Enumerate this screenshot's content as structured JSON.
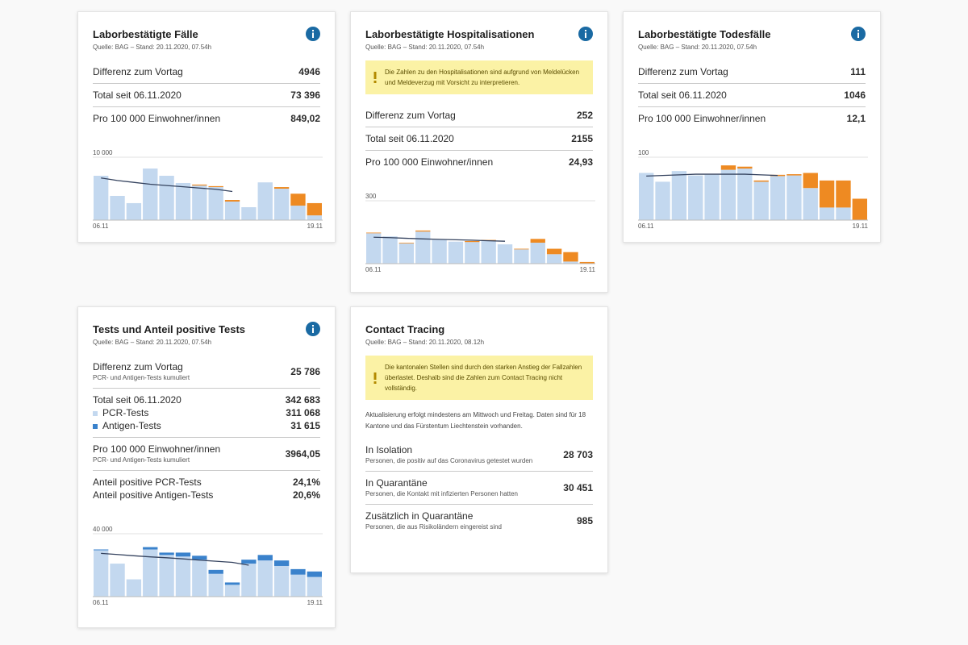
{
  "cards": [
    {
      "title": "Laborbestätigte Fälle",
      "source": "Quelle: BAG – Stand: 20.11.2020, 07.54h",
      "info_icon": true,
      "rows": [
        {
          "lines": [
            {
              "label": "Differenz zum Vortag",
              "value": "4946"
            }
          ]
        },
        {
          "lines": [
            {
              "label": "Total seit 06.11.2020",
              "value": "73 396"
            }
          ]
        },
        {
          "lines": [
            {
              "label": "Pro 100 000 Einwohner/innen",
              "value": "849,02"
            }
          ]
        }
      ],
      "chart": {
        "type": "bar",
        "ylim": [
          0,
          10000
        ],
        "yticks": [
          {
            "value": 10000,
            "label": "10 000"
          }
        ],
        "categories": [
          "06.11",
          null,
          null,
          null,
          null,
          null,
          null,
          null,
          null,
          null,
          null,
          null,
          null,
          "19.11"
        ],
        "series": [
          {
            "color": "#c3d8ef",
            "values": [
              7050,
              3850,
              2700,
              8200,
              7050,
              5900,
              5500,
              5250,
              2950,
              2050,
              6000,
              5000,
              2300,
              750
            ]
          },
          {
            "color": "#ee8a22",
            "values": [
              0,
              0,
              0,
              0,
              0,
              0,
              150,
              150,
              250,
              0,
              0,
              250,
              1900,
              1950
            ]
          },
          {
            "type": "line",
            "color": "#34425e",
            "values": [
              6700,
              6300,
              6000,
              5700,
              5500,
              5300,
              5100,
              4900,
              4550,
              null,
              null,
              null,
              null,
              null
            ]
          }
        ]
      }
    },
    {
      "title": "Laborbestätigte Hospitalisationen",
      "source": "Quelle: BAG – Stand: 20.11.2020, 07.54h",
      "info_icon": true,
      "notice": "Die Zahlen zu den Hospitalisationen sind aufgrund von Meldelücken und Meldeverzug mit Vorsicht zu interpretieren.",
      "rows": [
        {
          "lines": [
            {
              "label": "Differenz zum Vortag",
              "value": "252"
            }
          ]
        },
        {
          "lines": [
            {
              "label": "Total seit 06.11.2020",
              "value": "2155"
            }
          ]
        },
        {
          "lines": [
            {
              "label": "Pro 100 000 Einwohner/innen",
              "value": "24,93"
            }
          ]
        }
      ],
      "chart": {
        "type": "bar",
        "ylim": [
          0,
          300
        ],
        "yticks": [
          300
        ],
        "categories": [
          "06.11",
          null,
          null,
          null,
          null,
          null,
          null,
          null,
          null,
          null,
          null,
          null,
          null,
          "19.11"
        ],
        "series": [
          {
            "color": "#c3d8ef",
            "values": [
              145,
              130,
              97,
              153,
              113,
              105,
              103,
              110,
              92,
              68,
              100,
              45,
              10,
              0
            ]
          },
          {
            "color": "#ee8a22",
            "values": [
              3,
              0,
              3,
              5,
              0,
              0,
              5,
              3,
              0,
              3,
              18,
              26,
              45,
              8
            ]
          },
          {
            "type": "line",
            "color": "#34425e",
            "values": [
              126,
              124,
              121,
              118,
              116,
              114,
              112,
              109,
              107,
              null,
              null,
              null,
              null,
              null
            ]
          }
        ]
      }
    },
    {
      "title": "Laborbestätigte Todesfälle",
      "source": "Quelle: BAG – Stand: 20.11.2020, 07.54h",
      "info_icon": true,
      "rows": [
        {
          "lines": [
            {
              "label": "Differenz zum Vortag",
              "value": "111"
            }
          ]
        },
        {
          "lines": [
            {
              "label": "Total seit 06.11.2020",
              "value": "1046"
            }
          ]
        },
        {
          "lines": [
            {
              "label": "Pro 100 000 Einwohner/innen",
              "value": "12,1"
            }
          ]
        }
      ],
      "chart": {
        "type": "bar",
        "ylim": [
          0,
          100
        ],
        "yticks": [
          100
        ],
        "categories": [
          "06.11",
          null,
          null,
          null,
          null,
          null,
          null,
          null,
          null,
          null,
          null,
          null,
          null,
          "19.11"
        ],
        "series": [
          {
            "color": "#c3d8ef",
            "values": [
              75,
              61,
              78,
              71,
              72,
              80,
              82,
              61,
              70,
              71,
              51,
              20,
              20,
              0
            ]
          },
          {
            "color": "#ee8a22",
            "values": [
              0,
              0,
              0,
              0,
              0,
              7,
              3,
              2,
              2,
              2,
              24,
              43,
              43,
              34
            ]
          },
          {
            "type": "line",
            "color": "#34425e",
            "values": [
              70,
              71,
              72,
              73,
              73,
              73,
              73,
              72,
              71,
              null,
              null,
              null,
              null,
              null
            ]
          }
        ]
      }
    },
    {
      "title": "Tests und Anteil positive Tests",
      "source": "Quelle: BAG – Stand: 20.11.2020, 07.54h",
      "info_icon": true,
      "rows": [
        {
          "lines": [
            {
              "label": "Differenz zum Vortag",
              "sublabel": "PCR- und Antigen-Tests kumuliert",
              "value": "25 786"
            }
          ]
        },
        {
          "lines": [
            {
              "label": "Total seit 06.11.2020",
              "value": "342 683"
            },
            {
              "label": "PCR-Tests",
              "value": "311 068",
              "swatch": "#c3d8ef"
            },
            {
              "label": "Antigen-Tests",
              "value": "31 615",
              "swatch": "#3a82cc"
            }
          ]
        },
        {
          "lines": [
            {
              "label": "Pro 100 000 Einwohner/innen",
              "sublabel": "PCR- und Antigen-Tests kumuliert",
              "value": "3964,05"
            }
          ]
        },
        {
          "lines": [
            {
              "label": "Anteil positive PCR-Tests",
              "value": "24,1%"
            },
            {
              "label": "Anteil positive Antigen-Tests",
              "value": "20,6%"
            }
          ]
        }
      ],
      "chart": {
        "type": "bar",
        "ylim": [
          0,
          40000
        ],
        "yticks": [
          {
            "value": 40000,
            "label": "40 000"
          }
        ],
        "categories": [
          "06.11",
          null,
          null,
          null,
          null,
          null,
          null,
          null,
          null,
          null,
          null,
          null,
          null,
          "19.11"
        ],
        "series": [
          {
            "color": "#c3d8ef",
            "values": [
              29500,
              21000,
              11000,
              30000,
              26500,
              25500,
              23500,
              14500,
              7500,
              21000,
              23000,
              19500,
              14000,
              12500
            ]
          },
          {
            "color": "#3a82cc",
            "values": [
              500,
              0,
              0,
              1500,
              1500,
              2500,
              2500,
              2500,
              1500,
              2500,
              3500,
              3500,
              3500,
              3500
            ]
          },
          {
            "type": "line",
            "color": "#34425e",
            "values": [
              27500,
              26800,
              26000,
              25300,
              24700,
              24000,
              23200,
              22500,
              21800,
              20000,
              null,
              null,
              null,
              null
            ]
          }
        ]
      }
    },
    {
      "title": "Contact Tracing",
      "source": "Quelle: BAG – Stand: 20.11.2020, 08.12h",
      "notice": "Die kantonalen Stellen sind durch den starken Anstieg der Fallzahlen überlastet. Deshalb sind die Zahlen zum Contact Tracing nicht vollständig.",
      "note": "Aktualisierung erfolgt mindestens am Mittwoch und Freitag. Daten sind für 18 Kantone und das Fürstentum Liechtenstein vorhanden.",
      "rows": [
        {
          "lines": [
            {
              "label": "In Isolation",
              "sublabel": "Personen, die positiv auf das Coronavirus getestet wurden",
              "value": "28 703"
            }
          ]
        },
        {
          "lines": [
            {
              "label": "In Quarantäne",
              "sublabel": "Personen, die Kontakt mit infizierten Personen hatten",
              "value": "30 451"
            }
          ]
        },
        {
          "lines": [
            {
              "label": "Zusätzlich in Quarantäne",
              "sublabel": "Personen, die aus Risikoländern eingereist sind",
              "value": "985"
            }
          ]
        }
      ]
    }
  ]
}
